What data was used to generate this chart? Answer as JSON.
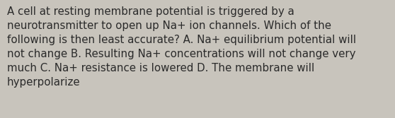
{
  "text": "A cell at resting membrane potential is triggered by a\nneurotransmitter to open up Na+ ion channels. Which of the\nfollowing is then least accurate? A. Na+ equilibrium potential will\nnot change B. Resulting Na+ concentrations will not change very\nmuch C. Na+ resistance is lowered D. The membrane will\nhyperpolarize",
  "background_color": "#c8c4bc",
  "text_color": "#2a2a2a",
  "font_size": 10.8,
  "font_family": "DejaVu Sans"
}
